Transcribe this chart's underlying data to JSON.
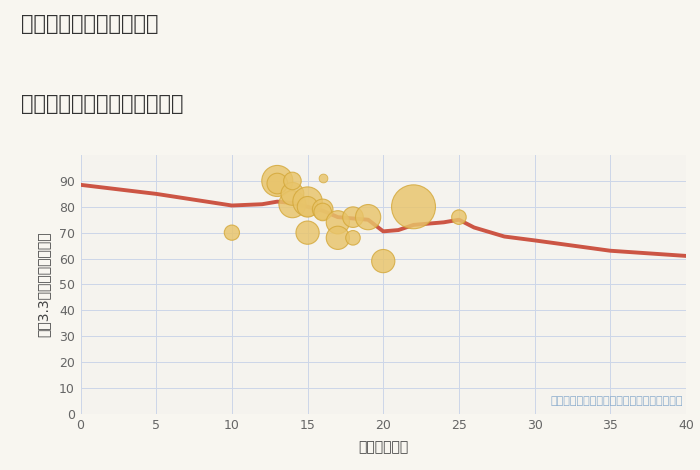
{
  "title_line1": "兵庫県宝塚市山本丸橋の",
  "title_line2": "築年数別中古マンション価格",
  "xlabel": "築年数（年）",
  "ylabel": "坪（3.3㎡）単価（万円）",
  "annotation": "円の大きさは、取引のあった物件面積を示す",
  "bg_color": "#f8f6f0",
  "plot_bg_color": "#f5f3ee",
  "grid_color": "#ccd6e8",
  "line_color": "#cc5544",
  "bubble_color": "#e8c46a",
  "bubble_edge_color": "#d4a83a",
  "xlim": [
    0,
    40
  ],
  "ylim": [
    0,
    100
  ],
  "xticks": [
    0,
    5,
    10,
    15,
    20,
    25,
    30,
    35,
    40
  ],
  "yticks": [
    0,
    10,
    20,
    30,
    40,
    50,
    60,
    70,
    80,
    90
  ],
  "line_x": [
    0,
    5,
    10,
    12,
    13,
    14,
    15,
    16,
    17,
    18,
    19,
    20,
    21,
    22,
    23,
    24,
    25,
    26,
    28,
    30,
    35,
    40
  ],
  "line_y": [
    88.5,
    85.0,
    80.5,
    81.0,
    82.0,
    81.5,
    80.0,
    78.5,
    76.0,
    75.5,
    75.0,
    70.5,
    71.0,
    73.0,
    73.5,
    74.0,
    75.0,
    72.0,
    68.5,
    67.0,
    63.0,
    61.0
  ],
  "scatter_x": [
    10,
    13,
    13,
    14,
    14,
    14,
    15,
    15,
    15,
    16,
    16,
    17,
    17,
    18,
    18,
    19,
    20,
    22,
    25
  ],
  "scatter_y": [
    70,
    90,
    89,
    81,
    85,
    90,
    82,
    80,
    70,
    79,
    78,
    74,
    68,
    76,
    68,
    76,
    59,
    80,
    76
  ],
  "scatter_size": [
    120,
    500,
    220,
    380,
    270,
    160,
    450,
    220,
    280,
    220,
    160,
    280,
    280,
    220,
    110,
    330,
    280,
    1000,
    110
  ],
  "scatter_x2": [
    16
  ],
  "scatter_y2": [
    91
  ],
  "scatter_size2": [
    40
  ],
  "title_fontsize": 15,
  "axis_label_fontsize": 10,
  "tick_fontsize": 9,
  "annotation_fontsize": 8
}
